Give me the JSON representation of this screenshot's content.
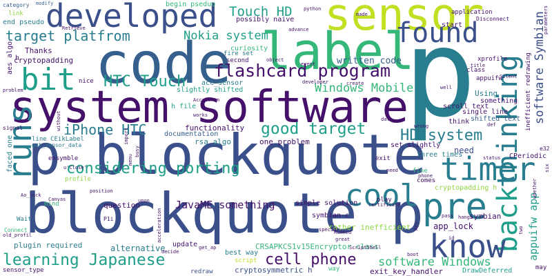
{
  "palette": {
    "purple": "#44106a",
    "indigo": "#3b4f8a",
    "blue": "#355f8d",
    "teal": "#287d8e",
    "cyan": "#1f9e89",
    "green": "#35b779",
    "lime": "#8fd744",
    "yellow": "#c2df23"
  },
  "words": [
    {
      "id": "w0",
      "text": "p"
    },
    {
      "id": "w1",
      "text": "system software"
    },
    {
      "id": "w2",
      "text": "p blockquote"
    },
    {
      "id": "w3",
      "text": "blockquote p"
    },
    {
      "id": "w4",
      "text": "code"
    },
    {
      "id": "w5",
      "text": "label"
    },
    {
      "id": "w6",
      "text": "developed"
    },
    {
      "id": "w7",
      "text": "sensor"
    },
    {
      "id": "w8",
      "text": "found"
    },
    {
      "id": "w9",
      "text": "thinking"
    },
    {
      "id": "w10",
      "text": "back"
    },
    {
      "id": "w11",
      "text": "timer"
    },
    {
      "id": "w12",
      "text": "cool"
    },
    {
      "id": "w13",
      "text": "pre"
    },
    {
      "id": "w14",
      "text": "know"
    },
    {
      "id": "w15",
      "text": "runs"
    },
    {
      "id": "w16",
      "text": "bit"
    },
    {
      "id": "w17",
      "text": "Touch HD"
    },
    {
      "id": "w18",
      "text": "target platfrom"
    },
    {
      "id": "w19",
      "text": "Nokia system"
    },
    {
      "id": "w20",
      "text": "flashcard program"
    },
    {
      "id": "w21",
      "text": "HTC Touch"
    },
    {
      "id": "w22",
      "text": "Windows Mobile"
    },
    {
      "id": "w23",
      "text": "good target"
    },
    {
      "id": "w24",
      "text": "iPhone HTC"
    },
    {
      "id": "w25",
      "text": "HD system"
    },
    {
      "id": "w26",
      "text": "considering porting"
    },
    {
      "id": "w27",
      "text": "JavaME something"
    },
    {
      "id": "w28",
      "text": "learning Japanese"
    },
    {
      "id": "w29",
      "text": "cell phone"
    },
    {
      "id": "w30",
      "text": "software Windows"
    },
    {
      "id": "w31",
      "text": "software Symbian"
    },
    {
      "id": "w32",
      "text": "appuifw app"
    },
    {
      "id": "w33",
      "text": "written code"
    },
    {
      "id": "w34",
      "text": "Thanks"
    },
    {
      "id": "w35",
      "text": "cryptopadding"
    },
    {
      "id": "w36",
      "text": "aes algo"
    },
    {
      "id": "w37",
      "text": "end pseudo"
    },
    {
      "id": "w38",
      "text": "link"
    },
    {
      "id": "w39",
      "text": "category"
    },
    {
      "id": "w40",
      "text": "modify"
    },
    {
      "id": "w41",
      "text": "begin pseduo"
    },
    {
      "id": "w42",
      "text": "possibly naive"
    },
    {
      "id": "w43",
      "text": "curiosity"
    },
    {
      "id": "w44",
      "text": "fire set"
    },
    {
      "id": "w45",
      "text": "second"
    },
    {
      "id": "w46",
      "text": "acc_sensor"
    },
    {
      "id": "w47",
      "text": "slightly shifted"
    },
    {
      "id": "w48",
      "text": "nice"
    },
    {
      "id": "w49",
      "text": "h file"
    },
    {
      "id": "w50",
      "text": "functionality"
    },
    {
      "id": "w51",
      "text": "documentation"
    },
    {
      "id": "w52",
      "text": "rsa algo"
    },
    {
      "id": "w53",
      "text": "one problem"
    },
    {
      "id": "w54",
      "text": "line CEikLabel"
    },
    {
      "id": "w55",
      "text": "get_sensor_data"
    },
    {
      "id": "w56",
      "text": "faced one"
    },
    {
      "id": "w57",
      "text": "ensymble"
    },
    {
      "id": "w58",
      "text": "profile"
    },
    {
      "id": "w59",
      "text": "mind"
    },
    {
      "id": "w60",
      "text": "Wait"
    },
    {
      "id": "w61",
      "text": "plugin required"
    },
    {
      "id": "w62",
      "text": "question"
    },
    {
      "id": "w63",
      "text": "alternative"
    },
    {
      "id": "w64",
      "text": "update"
    },
    {
      "id": "w65",
      "text": "best way"
    },
    {
      "id": "w66",
      "text": "script"
    },
    {
      "id": "w67",
      "text": "redraw"
    },
    {
      "id": "w68",
      "text": "cryptosymmetric h"
    },
    {
      "id": "w69",
      "text": "CRSAPKCS1v15Encryptor class"
    },
    {
      "id": "w70",
      "text": "exit_key_handler"
    },
    {
      "id": "w71",
      "text": "DrawDeferred"
    },
    {
      "id": "w72",
      "text": "symbian c"
    },
    {
      "id": "w73",
      "text": "rather inefficient"
    },
    {
      "id": "w74",
      "text": "simple solution"
    },
    {
      "id": "w75",
      "text": "set slightly"
    },
    {
      "id": "w76",
      "text": "three times"
    },
    {
      "id": "w77",
      "text": "need"
    },
    {
      "id": "w78",
      "text": "exit"
    },
    {
      "id": "w79",
      "text": "play"
    },
    {
      "id": "w80",
      "text": "fine"
    },
    {
      "id": "w81",
      "text": "comes"
    },
    {
      "id": "w82",
      "text": "cryptopadding h"
    },
    {
      "id": "w83",
      "text": "app_lock"
    },
    {
      "id": "w84",
      "text": "symbian"
    },
    {
      "id": "w85",
      "text": "CPeriodic"
    },
    {
      "id": "w86",
      "text": "scroll text"
    },
    {
      "id": "w87",
      "text": "single line"
    },
    {
      "id": "w88",
      "text": "shifted text"
    },
    {
      "id": "w89",
      "text": "think"
    },
    {
      "id": "w90",
      "text": "something"
    },
    {
      "id": "w91",
      "text": "Using"
    },
    {
      "id": "w92",
      "text": "appuifw"
    },
    {
      "id": "w93",
      "text": "class"
    },
    {
      "id": "w94",
      "text": "xprofile"
    },
    {
      "id": "w95",
      "text": "start"
    },
    {
      "id": "w96",
      "text": "application"
    },
    {
      "id": "w97",
      "text": "Disconnect"
    },
    {
      "id": "w98",
      "text": "inefficient redrawing"
    },
    {
      "id": "w99",
      "text": "e32"
    },
    {
      "id": "w100",
      "text": "may"
    },
    {
      "id": "w101",
      "text": "Connect"
    },
    {
      "id": "w102",
      "text": "old_profil"
    },
    {
      "id": "w103",
      "text": "sensor_type"
    },
    {
      "id": "w104",
      "text": "signal"
    },
    {
      "id": "w105",
      "text": "h"
    },
    {
      "id": "w106",
      "text": "Retrieve"
    },
    {
      "id": "w107",
      "text": "made"
    },
    {
      "id": "w108",
      "text": "Runned"
    },
    {
      "id": "w109",
      "text": "great"
    },
    {
      "id": "w110",
      "text": "pass"
    },
    {
      "id": "w111",
      "text": "hangs"
    },
    {
      "id": "w112",
      "text": "phone"
    },
    {
      "id": "w113",
      "text": "boot"
    },
    {
      "id": "w114",
      "text": "certificate"
    },
    {
      "id": "w115",
      "text": "ScriptShell"
    },
    {
      "id": "w116",
      "text": "acceleration"
    },
    {
      "id": "w117",
      "text": "P1i"
    },
    {
      "id": "w118",
      "text": "upon"
    },
    {
      "id": "w119",
      "text": "get_ap"
    },
    {
      "id": "w120",
      "text": "two"
    },
    {
      "id": "w121",
      "text": "whether"
    },
    {
      "id": "w122",
      "text": "six"
    },
    {
      "id": "w123",
      "text": "parameters"
    },
    {
      "id": "w124",
      "text": "u'Close'"
    },
    {
      "id": "w125",
      "text": "Ao_lock"
    },
    {
      "id": "w126",
      "text": "object"
    },
    {
      "id": "w127",
      "text": "event"
    },
    {
      "id": "w128",
      "text": "advance"
    },
    {
      "id": "w129",
      "text": "developer"
    },
    {
      "id": "w130",
      "text": "create"
    },
    {
      "id": "w131",
      "text": "well"
    },
    {
      "id": "w132",
      "text": "title"
    },
    {
      "id": "w133",
      "text": "Silent"
    },
    {
      "id": "w134",
      "text": "problem"
    },
    {
      "id": "w135",
      "text": "without"
    },
    {
      "id": "w136",
      "text": "import"
    },
    {
      "id": "w137",
      "text": "menu"
    },
    {
      "id": "w138",
      "text": "data"
    },
    {
      "id": "w139",
      "text": "wrong"
    },
    {
      "id": "w140",
      "text": "def"
    },
    {
      "id": "w141",
      "text": "status"
    },
    {
      "id": "w142",
      "text": "python"
    },
    {
      "id": "w143",
      "text": "works"
    },
    {
      "id": "w144",
      "text": "Canvas"
    },
    {
      "id": "w145",
      "text": "decide"
    },
    {
      "id": "w146",
      "text": "position"
    },
    {
      "id": "w147",
      "text": "special"
    },
    {
      "id": "w148",
      "text": "way"
    },
    {
      "id": "w149",
      "text": "id"
    },
    {
      "id": "w150",
      "text": "busy"
    },
    {
      "id": "w151",
      "text": "Acc"
    },
    {
      "id": "w152",
      "text": "Accelerom"
    },
    {
      "id": "w153",
      "text": "need"
    }
  ]
}
